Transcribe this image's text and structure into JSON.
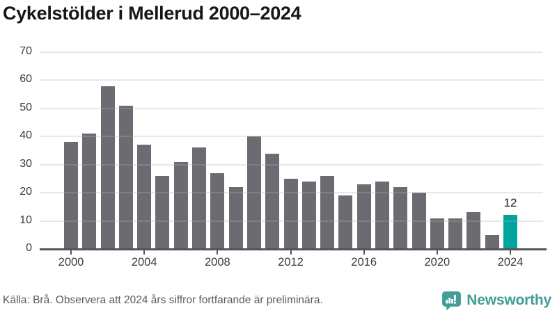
{
  "chart_data": {
    "type": "bar",
    "title": "Cykelstölder i Mellerud 2000–2024",
    "x": [
      2000,
      2001,
      2002,
      2003,
      2004,
      2005,
      2006,
      2007,
      2008,
      2009,
      2010,
      2011,
      2012,
      2013,
      2014,
      2015,
      2016,
      2017,
      2018,
      2019,
      2020,
      2021,
      2022,
      2023,
      2024
    ],
    "values": [
      38,
      41,
      58,
      51,
      37,
      26,
      31,
      36,
      27,
      22,
      40,
      34,
      25,
      24,
      26,
      19,
      23,
      24,
      22,
      20,
      11,
      11,
      13,
      5,
      12
    ],
    "xlabel": "",
    "ylabel": "",
    "ylim": [
      0,
      70
    ],
    "yticks": [
      0,
      10,
      20,
      30,
      40,
      50,
      60,
      70
    ],
    "xticks": [
      2000,
      2004,
      2008,
      2012,
      2016,
      2020,
      2024
    ],
    "grid": true,
    "legend": "none",
    "highlight_year": 2024,
    "highlight_value_label": "12",
    "colors": {
      "bar": "#6b6b71",
      "highlight": "#00a49b",
      "gridline": "#e5e5e8",
      "axis": "#54545a",
      "tick_text": "#3c3c3e"
    }
  },
  "footer": {
    "source_text": "Källa: Brå. Observera att 2024 års siffror fortfarande är preliminära.",
    "logo_text": "Newsworthy",
    "logo_color": "#3f9e96"
  }
}
